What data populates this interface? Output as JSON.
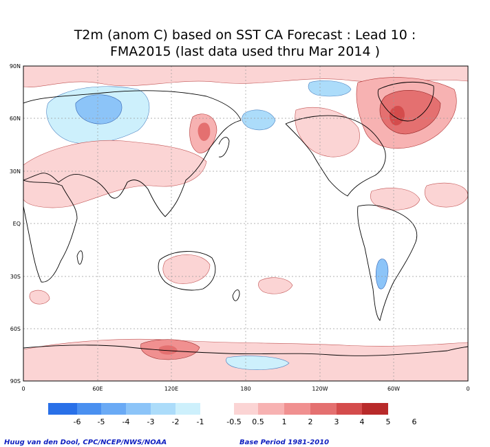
{
  "title": {
    "line1": "T2m (anom C) based on SST CA Forecast : Lead 10 :",
    "line2": "FMA2015 (last data used thru Mar 2014 )"
  },
  "map": {
    "projection": "lat-lon global",
    "lat_labels": [
      "90N",
      "60N",
      "30N",
      "EQ",
      "30S",
      "60S",
      "90S"
    ],
    "lon_labels": [
      "0",
      "60E",
      "120E",
      "180",
      "120W",
      "60W",
      "0"
    ],
    "grid": "dotted"
  },
  "colorbar": {
    "colors": [
      "#2970e8",
      "#4a90f0",
      "#6aaaf5",
      "#8cc4f8",
      "#acdcfa",
      "#cdf0fc",
      "#ffffff",
      "#fbd4d4",
      "#f7b2b2",
      "#f09090",
      "#e47070",
      "#d44c4c",
      "#b82a2a"
    ],
    "labels": [
      "-6",
      "-5",
      "-4",
      "-3",
      "-2",
      "-1",
      "-0.5",
      "0.5",
      "1",
      "2",
      "3",
      "4",
      "5",
      "6"
    ]
  },
  "footer": {
    "credit": "Huug van den Dool, CPC/NCEP/NWS/NOAA",
    "base_period": "Base Period 1981-2010"
  }
}
